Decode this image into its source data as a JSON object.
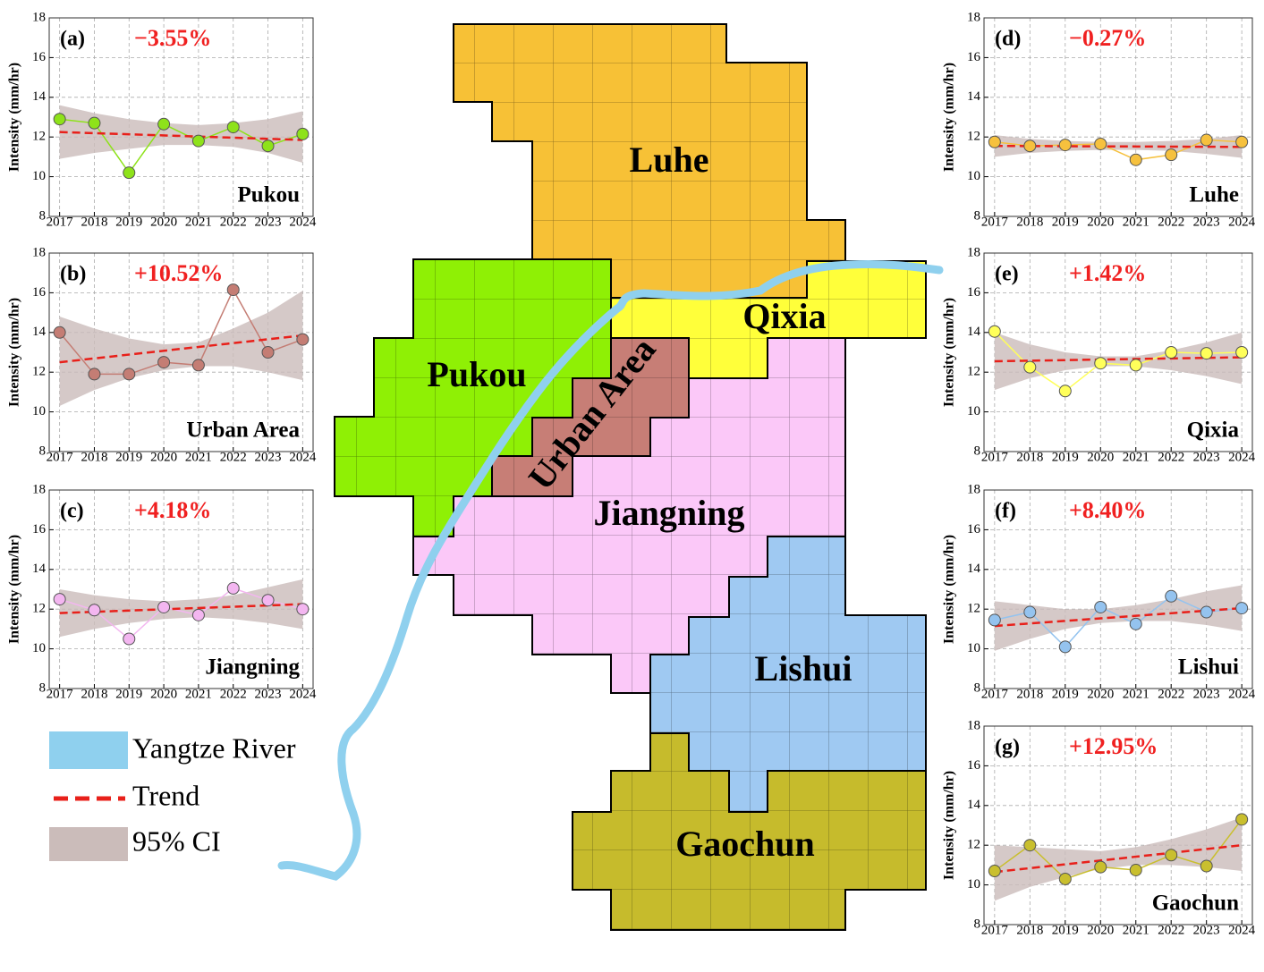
{
  "chart_data": [
    {
      "type": "line",
      "panel": "(a)",
      "annotation": "−3.55%",
      "region": "Pukou",
      "ylabel": "Intensity (mm/hr)",
      "color": "#8ee21a",
      "x": [
        2017,
        2018,
        2019,
        2020,
        2021,
        2022,
        2023,
        2024
      ],
      "values": [
        12.9,
        12.7,
        10.2,
        12.65,
        11.8,
        12.5,
        11.55,
        12.15
      ],
      "trend": [
        12.25,
        11.85
      ],
      "ci_lower": [
        10.9,
        11.2,
        11.4,
        11.6,
        11.6,
        11.5,
        11.2,
        10.7
      ],
      "ci_upper": [
        13.6,
        13.2,
        12.9,
        12.7,
        12.6,
        12.7,
        12.9,
        13.3
      ],
      "xlim": [
        2016.7,
        2024.3
      ],
      "ylim": [
        8,
        18
      ],
      "xticks": [
        2017,
        2018,
        2019,
        2020,
        2021,
        2022,
        2023,
        2024
      ],
      "yticks": [
        8,
        10,
        12,
        14,
        16,
        18
      ],
      "grid": true
    },
    {
      "type": "line",
      "panel": "(b)",
      "annotation": "+10.52%",
      "region": "Urban Area",
      "ylabel": "Intensity (mm/hr)",
      "color": "#c47d74",
      "x": [
        2017,
        2018,
        2019,
        2020,
        2021,
        2022,
        2023,
        2024
      ],
      "values": [
        14.0,
        11.9,
        11.9,
        12.5,
        12.35,
        16.15,
        13.0,
        13.65
      ],
      "trend": [
        12.5,
        13.85
      ],
      "ci_lower": [
        10.3,
        11.1,
        11.7,
        12.1,
        12.3,
        12.3,
        12.0,
        11.6
      ],
      "ci_upper": [
        14.8,
        14.2,
        13.7,
        13.4,
        13.5,
        14.2,
        15.0,
        16.1
      ],
      "xlim": [
        2016.7,
        2024.3
      ],
      "ylim": [
        8,
        18
      ],
      "xticks": [
        2017,
        2018,
        2019,
        2020,
        2021,
        2022,
        2023,
        2024
      ],
      "yticks": [
        8,
        10,
        12,
        14,
        16,
        18
      ],
      "grid": true
    },
    {
      "type": "line",
      "panel": "(c)",
      "annotation": "+4.18%",
      "region": "Jiangning",
      "ylabel": "Intensity (mm/hr)",
      "color": "#f3b6f0",
      "x": [
        2017,
        2018,
        2019,
        2020,
        2021,
        2022,
        2023,
        2024
      ],
      "values": [
        12.5,
        11.95,
        10.5,
        12.1,
        11.7,
        13.05,
        12.45,
        12.0
      ],
      "trend": [
        11.8,
        12.25
      ],
      "ci_lower": [
        10.6,
        11.0,
        11.3,
        11.5,
        11.6,
        11.5,
        11.3,
        11.0
      ],
      "ci_upper": [
        13.0,
        12.7,
        12.5,
        12.4,
        12.5,
        12.7,
        13.1,
        13.5
      ],
      "xlim": [
        2016.7,
        2024.3
      ],
      "ylim": [
        8,
        18
      ],
      "xticks": [
        2017,
        2018,
        2019,
        2020,
        2021,
        2022,
        2023,
        2024
      ],
      "yticks": [
        8,
        10,
        12,
        14,
        16,
        18
      ],
      "grid": true
    },
    {
      "type": "line",
      "panel": "(d)",
      "annotation": "−0.27%",
      "region": "Luhe",
      "ylabel": "Intensity (mm/hr)",
      "color": "#f6c13e",
      "x": [
        2017,
        2018,
        2019,
        2020,
        2021,
        2022,
        2023,
        2024
      ],
      "values": [
        11.75,
        11.55,
        11.6,
        11.65,
        10.85,
        11.1,
        11.85,
        11.75
      ],
      "trend": [
        11.55,
        11.5
      ],
      "ci_lower": [
        11.0,
        11.2,
        11.3,
        11.35,
        11.35,
        11.3,
        11.15,
        10.95
      ],
      "ci_upper": [
        12.1,
        11.9,
        11.8,
        11.75,
        11.75,
        11.8,
        11.9,
        12.1
      ],
      "xlim": [
        2016.7,
        2024.3
      ],
      "ylim": [
        8,
        18
      ],
      "xticks": [
        2017,
        2018,
        2019,
        2020,
        2021,
        2022,
        2023,
        2024
      ],
      "yticks": [
        8,
        10,
        12,
        14,
        16,
        18
      ],
      "grid": true
    },
    {
      "type": "line",
      "panel": "(e)",
      "annotation": "+1.42%",
      "region": "Qixia",
      "ylabel": "Intensity (mm/hr)",
      "color": "#ffff5a",
      "x": [
        2017,
        2018,
        2019,
        2020,
        2021,
        2022,
        2023,
        2024
      ],
      "values": [
        14.05,
        12.25,
        11.05,
        12.45,
        12.35,
        13.0,
        12.95,
        13.0
      ],
      "trend": [
        12.55,
        12.75
      ],
      "ci_lower": [
        11.1,
        11.7,
        12.1,
        12.3,
        12.3,
        12.1,
        11.8,
        11.4
      ],
      "ci_upper": [
        14.0,
        13.4,
        13.0,
        12.8,
        12.8,
        13.1,
        13.5,
        14.0
      ],
      "xlim": [
        2016.7,
        2024.3
      ],
      "ylim": [
        8,
        18
      ],
      "xticks": [
        2017,
        2018,
        2019,
        2020,
        2021,
        2022,
        2023,
        2024
      ],
      "yticks": [
        8,
        10,
        12,
        14,
        16,
        18
      ],
      "grid": true
    },
    {
      "type": "line",
      "panel": "(f)",
      "annotation": "+8.40%",
      "region": "Lishui",
      "ylabel": "Intensity (mm/hr)",
      "color": "#94c3ef",
      "x": [
        2017,
        2018,
        2019,
        2020,
        2021,
        2022,
        2023,
        2024
      ],
      "values": [
        11.45,
        11.85,
        10.1,
        12.1,
        11.25,
        12.65,
        11.85,
        12.05
      ],
      "trend": [
        11.15,
        12.05
      ],
      "ci_lower": [
        9.9,
        10.5,
        11.0,
        11.3,
        11.4,
        11.4,
        11.2,
        10.9
      ],
      "ci_upper": [
        12.4,
        12.2,
        12.0,
        12.0,
        12.2,
        12.5,
        12.9,
        13.2
      ],
      "xlim": [
        2016.7,
        2024.3
      ],
      "ylim": [
        8,
        18
      ],
      "xticks": [
        2017,
        2018,
        2019,
        2020,
        2021,
        2022,
        2023,
        2024
      ],
      "yticks": [
        8,
        10,
        12,
        14,
        16,
        18
      ],
      "grid": true
    },
    {
      "type": "line",
      "panel": "(g)",
      "annotation": "+12.95%",
      "region": "Gaochun",
      "ylabel": "Intensity (mm/hr)",
      "color": "#c9bf2e",
      "x": [
        2017,
        2018,
        2019,
        2020,
        2021,
        2022,
        2023,
        2024
      ],
      "values": [
        10.7,
        12.0,
        10.3,
        10.9,
        10.75,
        11.5,
        10.95,
        13.3
      ],
      "trend": [
        10.65,
        12.0
      ],
      "ci_lower": [
        9.2,
        9.9,
        10.4,
        10.8,
        11.0,
        11.0,
        10.9,
        10.7
      ],
      "ci_upper": [
        12.0,
        11.9,
        11.8,
        11.7,
        11.9,
        12.3,
        12.8,
        13.4
      ],
      "xlim": [
        2016.7,
        2024.3
      ],
      "ylim": [
        8,
        18
      ],
      "xticks": [
        2017,
        2018,
        2019,
        2020,
        2021,
        2022,
        2023,
        2024
      ],
      "yticks": [
        8,
        10,
        12,
        14,
        16,
        18
      ],
      "grid": true
    }
  ],
  "map": {
    "regions": [
      "Luhe",
      "Qixia",
      "Pukou",
      "Urban Area",
      "Jiangning",
      "Lishui",
      "Gaochun"
    ]
  },
  "legend": [
    "Yangtze River",
    "Trend",
    "95% CI"
  ]
}
